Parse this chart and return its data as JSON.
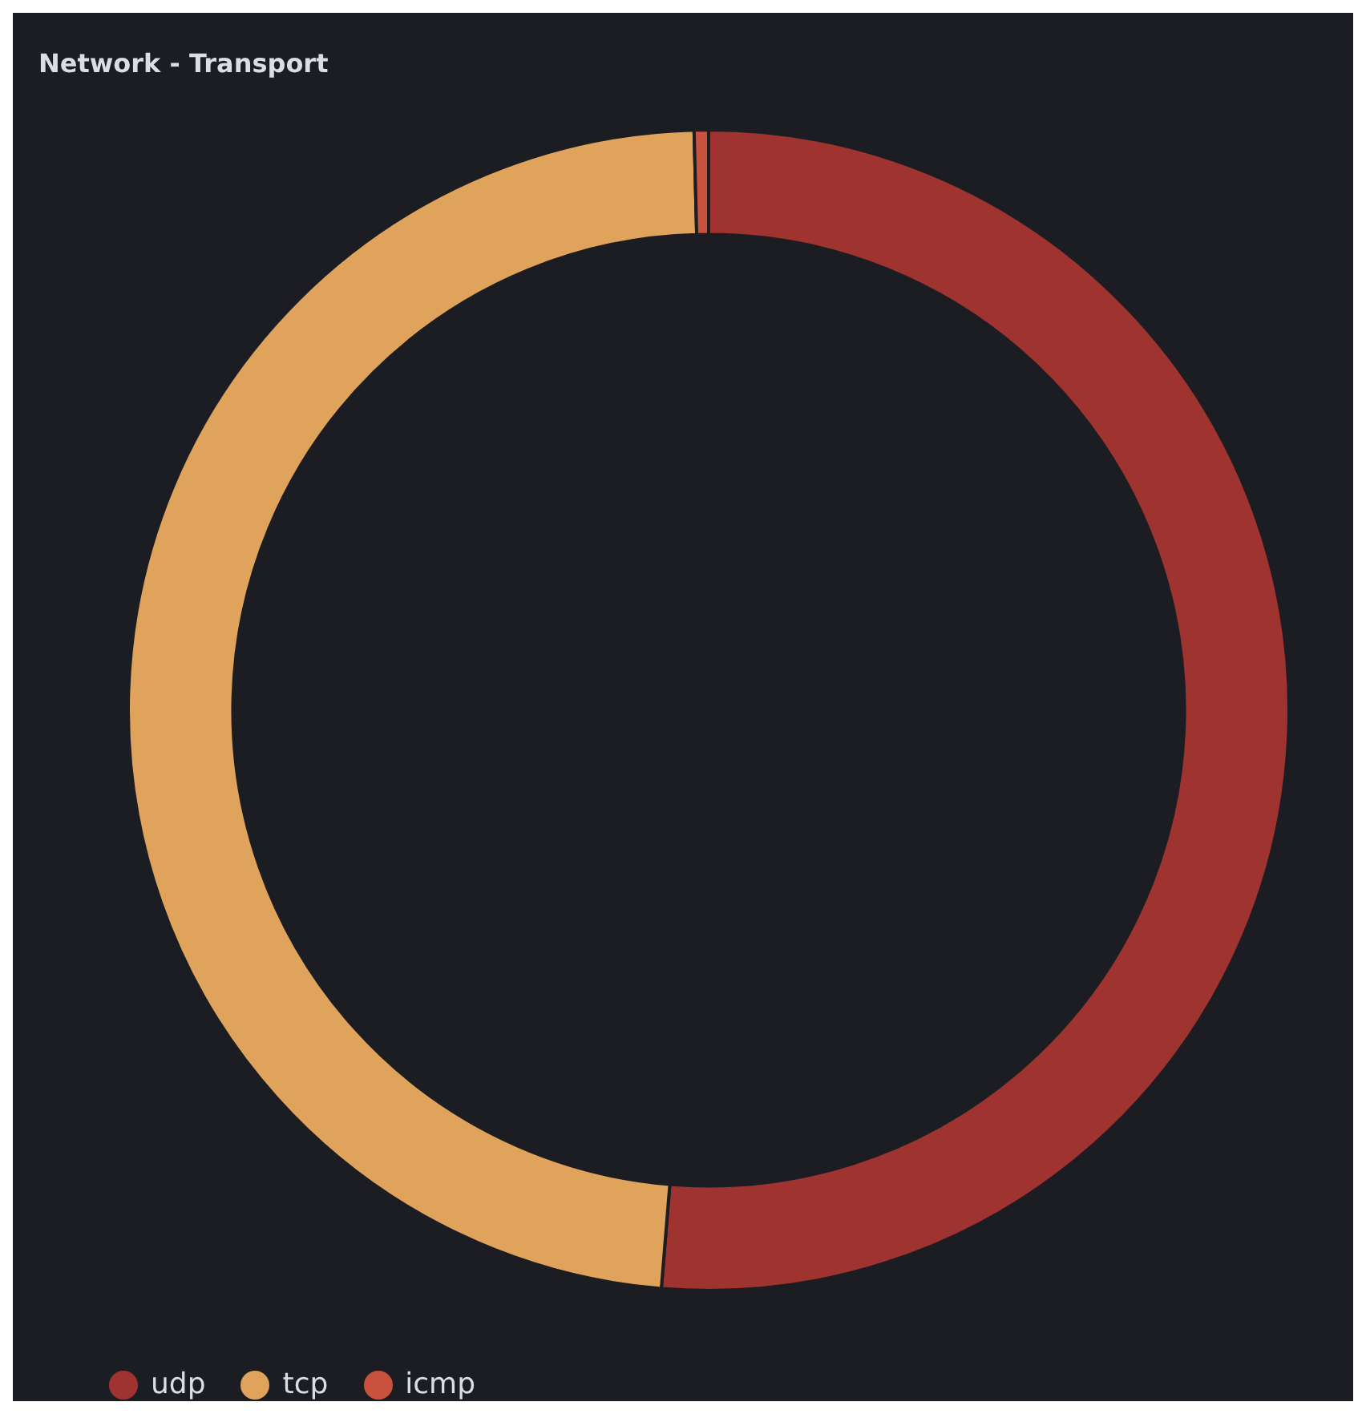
{
  "chart_data": {
    "type": "donut",
    "title": "Network - Transport",
    "categories": [
      "udp",
      "tcp",
      "icmp"
    ],
    "values": [
      51.3,
      48.3,
      0.4
    ],
    "colors": [
      "#9e3330",
      "#e0a35c",
      "#c8523e"
    ],
    "legend": "bottom left"
  }
}
